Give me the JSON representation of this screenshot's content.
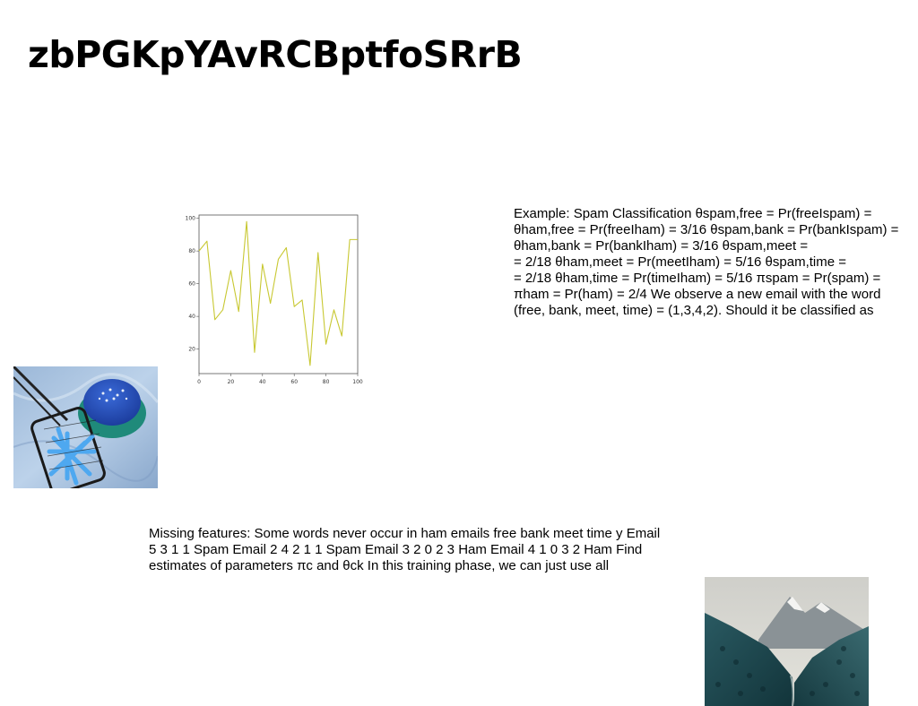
{
  "page": {
    "title": "zbPGKpYAvRCBptfoSRrB"
  },
  "text_blocks": {
    "spam_example": "Example: Spam Classification θspam,free = Pr(freeIspam) =\nθham,free = Pr(freeIham) = 3/16 θspam,bank = Pr(bankIspam) =\nθham,bank = Pr(bankIham) = 3/16 θspam,meet =\n= 2/18 θham,meet = Pr(meetIham) = 5/16 θspam,time =\n= 2/18 θham,time = Pr(timeIham) = 5/16 πspam = Pr(spam) =\nπham = Pr(ham) = 2/4 We observe a new email with the word\n(free, bank, meet, time) = (1,3,4,2). Should it be classified as",
    "missing_features": "Missing features: Some words never occur in ham emails free bank meet time y Email\n5 3 1 1 Spam Email 2 4 2 1 1 Spam Email 3 2 0 2 3 Ham Email 4 1 0 3 2 Ham Find\nestimates of parameters πc and θck In this training phase, we can just use all"
  },
  "images": {
    "food_photo": "blue burger and blue fries in a wire basket",
    "mountain_photo": "forested mountain valley with snowy peaks"
  },
  "chart_data": {
    "type": "line",
    "x": [
      0,
      5,
      10,
      15,
      20,
      25,
      30,
      35,
      40,
      45,
      50,
      55,
      60,
      65,
      70,
      75,
      80,
      85,
      90,
      95,
      100
    ],
    "series": [
      {
        "values": [
          80,
          86,
          38,
          44,
          68,
          43,
          98,
          18,
          72,
          48,
          75,
          82,
          46,
          50,
          10,
          79,
          23,
          44,
          28,
          87,
          87
        ]
      }
    ],
    "xlim": [
      0,
      100
    ],
    "ylim": [
      5,
      102
    ],
    "xticks": [
      0,
      20,
      40,
      60,
      80,
      100
    ],
    "yticks": [
      20,
      40,
      60,
      80,
      100
    ],
    "line_color": "#c8c832",
    "grid": false,
    "title": "",
    "xlabel": "",
    "ylabel": ""
  }
}
